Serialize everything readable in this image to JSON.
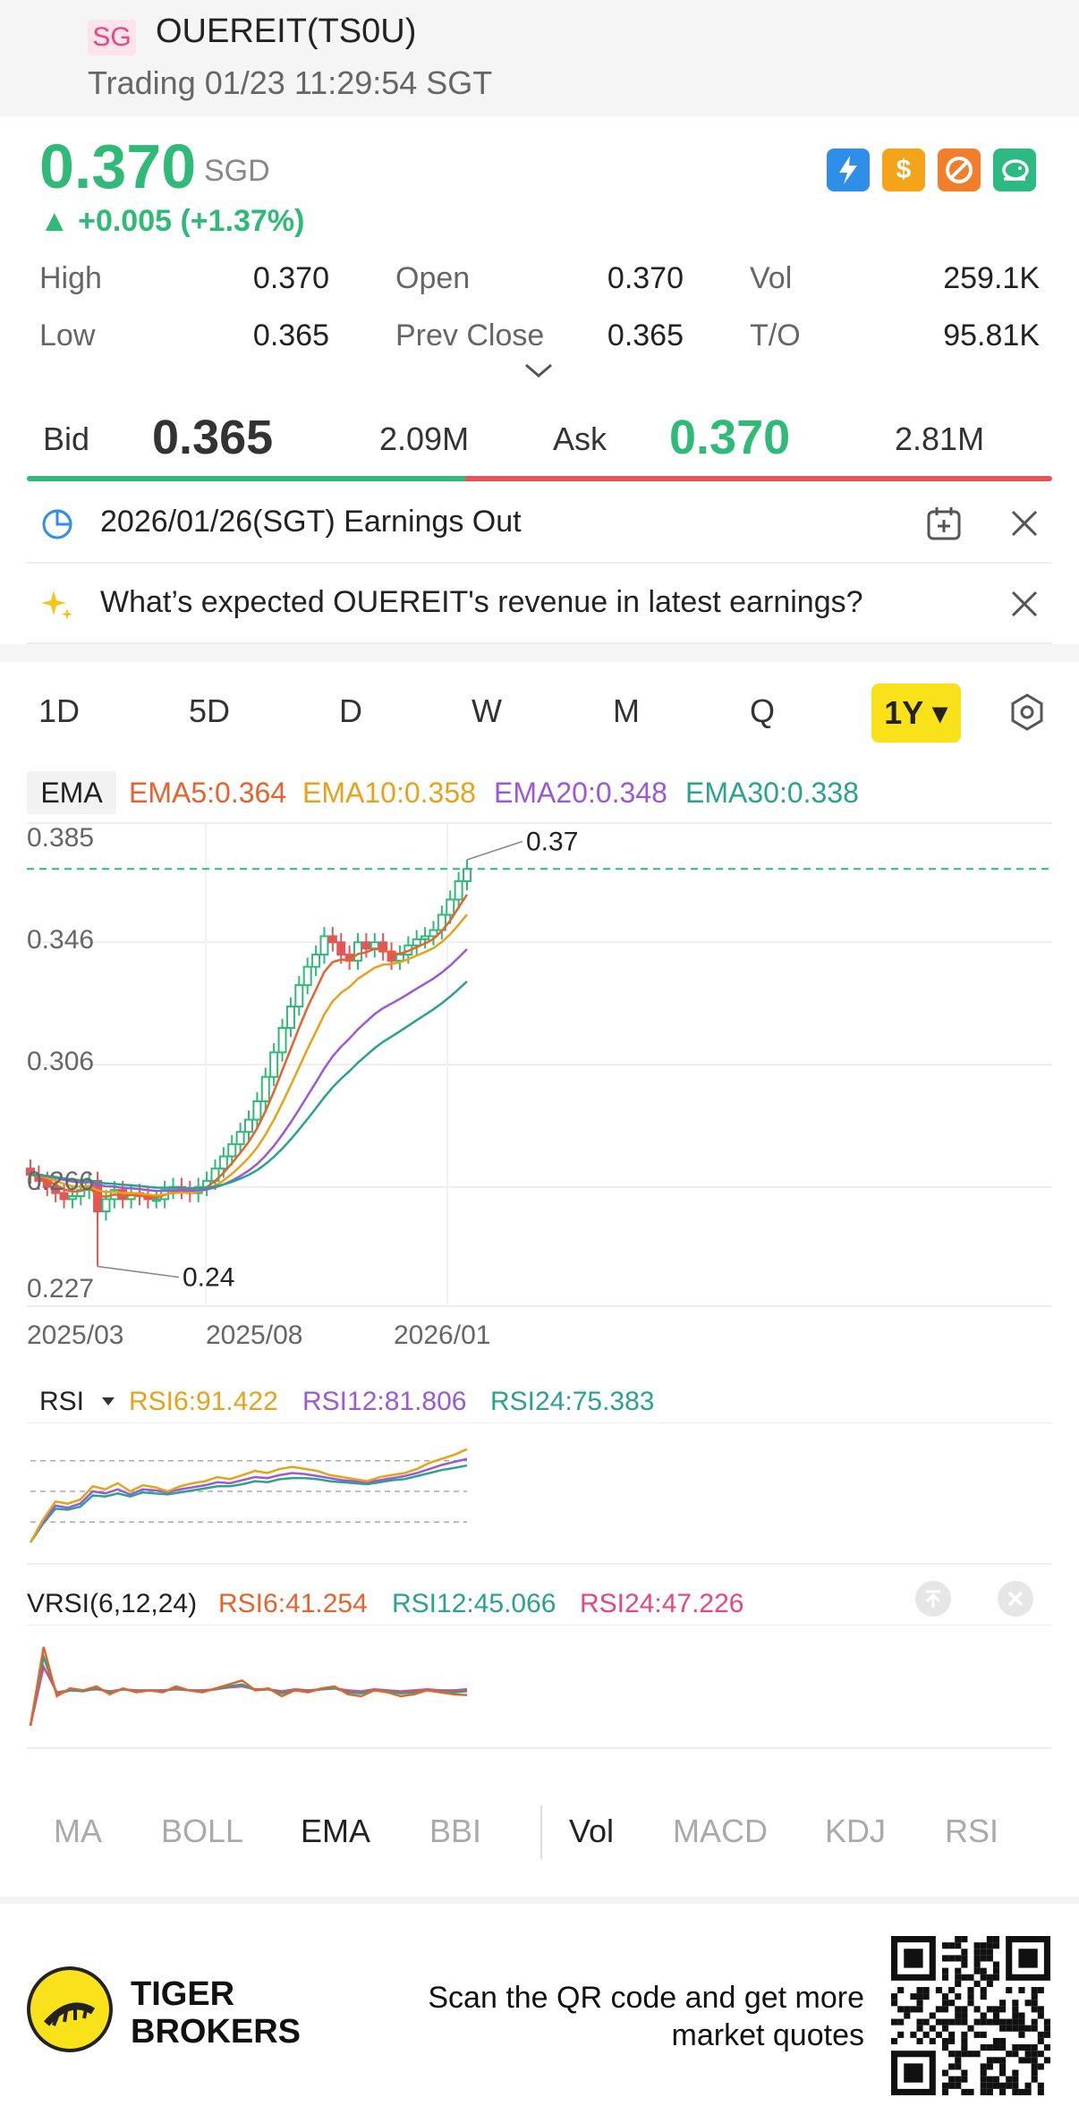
{
  "header": {
    "market_badge": "SG",
    "title": "OUEREIT(TS0U)",
    "status": "Trading 01/23 11:29:54 SGT"
  },
  "quote": {
    "price": "0.370",
    "currency": "SGD",
    "change": "▲ +0.005 (+1.37%)",
    "high_label": "High",
    "high": "0.370",
    "open_label": "Open",
    "open": "0.370",
    "vol_label": "Vol",
    "vol": "259.1K",
    "low_label": "Low",
    "low": "0.365",
    "prev_close_label": "Prev Close",
    "prev_close": "0.365",
    "to_label": "T/O",
    "to": "95.81K"
  },
  "icons": [
    "lightning-icon",
    "dollar-icon",
    "no-fee-icon",
    "piggy-icon"
  ],
  "bidask": {
    "bid_label": "Bid",
    "bid": "0.365",
    "bid_vol": "2.09M",
    "ask_label": "Ask",
    "ask": "0.370",
    "ask_vol": "2.81M"
  },
  "notices": {
    "earnings": "2026/01/26(SGT) Earnings Out",
    "question": "What’s expected OUEREIT's revenue in latest earnings?"
  },
  "periods": [
    "1D",
    "5D",
    "D",
    "W",
    "M",
    "Q"
  ],
  "period_active": "1Y ▾",
  "indicators": {
    "chip": "EMA",
    "ema5": "EMA5:0.364",
    "ema10": "EMA10:0.358",
    "ema20": "EMA20:0.348",
    "ema30": "EMA30:0.338"
  },
  "colors": {
    "up": "#2fba78",
    "down": "#e25656",
    "ema5": "#e8622c",
    "ema10": "#e8a21a",
    "ema20": "#9b59d6",
    "ema30": "#2aa38c"
  },
  "chart_data": {
    "type": "candlestick",
    "y_ticks": [
      "0.385",
      "0.346",
      "0.306",
      "0.266",
      "0.227"
    ],
    "x_ticks": [
      "2025/03",
      "2025/08",
      "2026/01"
    ],
    "ylim": [
      0.227,
      0.385
    ],
    "last_close_line": 0.37,
    "annotations": {
      "high": "0.37",
      "low": "0.24"
    },
    "closes": [
      0.27,
      0.268,
      0.266,
      0.264,
      0.262,
      0.263,
      0.265,
      0.268,
      0.258,
      0.262,
      0.265,
      0.262,
      0.264,
      0.263,
      0.262,
      0.262,
      0.265,
      0.266,
      0.265,
      0.264,
      0.266,
      0.268,
      0.272,
      0.276,
      0.28,
      0.284,
      0.288,
      0.294,
      0.302,
      0.31,
      0.318,
      0.325,
      0.332,
      0.338,
      0.342,
      0.348,
      0.346,
      0.342,
      0.34,
      0.346,
      0.344,
      0.346,
      0.343,
      0.34,
      0.342,
      0.345,
      0.347,
      0.348,
      0.35,
      0.355,
      0.36,
      0.366,
      0.37
    ]
  },
  "rsi": {
    "label": "RSI",
    "rsi6": "RSI6:91.422",
    "rsi12": "RSI12:81.806",
    "rsi24": "RSI24:75.383",
    "rsi6_values": [
      0,
      22,
      40,
      38,
      42,
      55,
      52,
      58,
      50,
      56,
      54,
      50,
      55,
      58,
      60,
      64,
      62,
      66,
      70,
      68,
      72,
      74,
      72,
      70,
      66,
      64,
      62,
      60,
      64,
      66,
      68,
      72,
      78,
      82,
      86,
      91.4
    ],
    "rsi12_values": [
      0,
      20,
      36,
      34,
      38,
      50,
      48,
      52,
      47,
      52,
      51,
      49,
      52,
      54,
      56,
      59,
      58,
      61,
      64,
      63,
      66,
      68,
      67,
      65,
      63,
      61,
      60,
      59,
      61,
      63,
      65,
      68,
      72,
      76,
      79,
      81.8
    ],
    "rsi24_values": [
      0,
      18,
      33,
      32,
      35,
      46,
      45,
      48,
      45,
      49,
      48,
      47,
      49,
      51,
      53,
      55,
      55,
      57,
      60,
      59,
      62,
      63,
      63,
      62,
      60,
      59,
      58,
      57,
      59,
      61,
      62,
      65,
      68,
      71,
      73,
      75.4
    ]
  },
  "vrsi": {
    "label": "VRSI(6,12,24)",
    "rsi6": "RSI6:41.254",
    "rsi12": "RSI12:45.066",
    "rsi24": "RSI24:47.226",
    "rsi6_values": [
      10,
      90,
      40,
      48,
      46,
      50,
      42,
      48,
      44,
      46,
      44,
      50,
      46,
      44,
      48,
      52,
      56,
      46,
      48,
      40,
      46,
      44,
      48,
      50,
      42,
      40,
      46,
      44,
      40,
      42,
      46,
      44,
      42,
      41.3
    ],
    "rsi12_values": [
      10,
      80,
      42,
      46,
      45,
      48,
      44,
      47,
      45,
      46,
      45,
      48,
      46,
      45,
      47,
      50,
      52,
      46,
      47,
      43,
      46,
      45,
      47,
      48,
      44,
      43,
      46,
      45,
      43,
      44,
      46,
      45,
      44,
      45.1
    ],
    "rsi24_values": [
      10,
      70,
      44,
      46,
      46,
      47,
      45,
      47,
      46,
      46,
      46,
      47,
      46,
      46,
      47,
      49,
      50,
      47,
      47,
      45,
      47,
      46,
      47,
      48,
      46,
      45,
      47,
      46,
      45,
      46,
      47,
      46,
      46,
      47.2
    ]
  },
  "bottom_tabs": [
    "MA",
    "BOLL",
    "EMA",
    "BBI",
    "Vol",
    "MACD",
    "KDJ",
    "RSI"
  ],
  "footer": {
    "brand_line1": "TIGER",
    "brand_line2": "BROKERS",
    "scan_line1": "Scan the QR code and get more",
    "scan_line2": "market quotes"
  }
}
